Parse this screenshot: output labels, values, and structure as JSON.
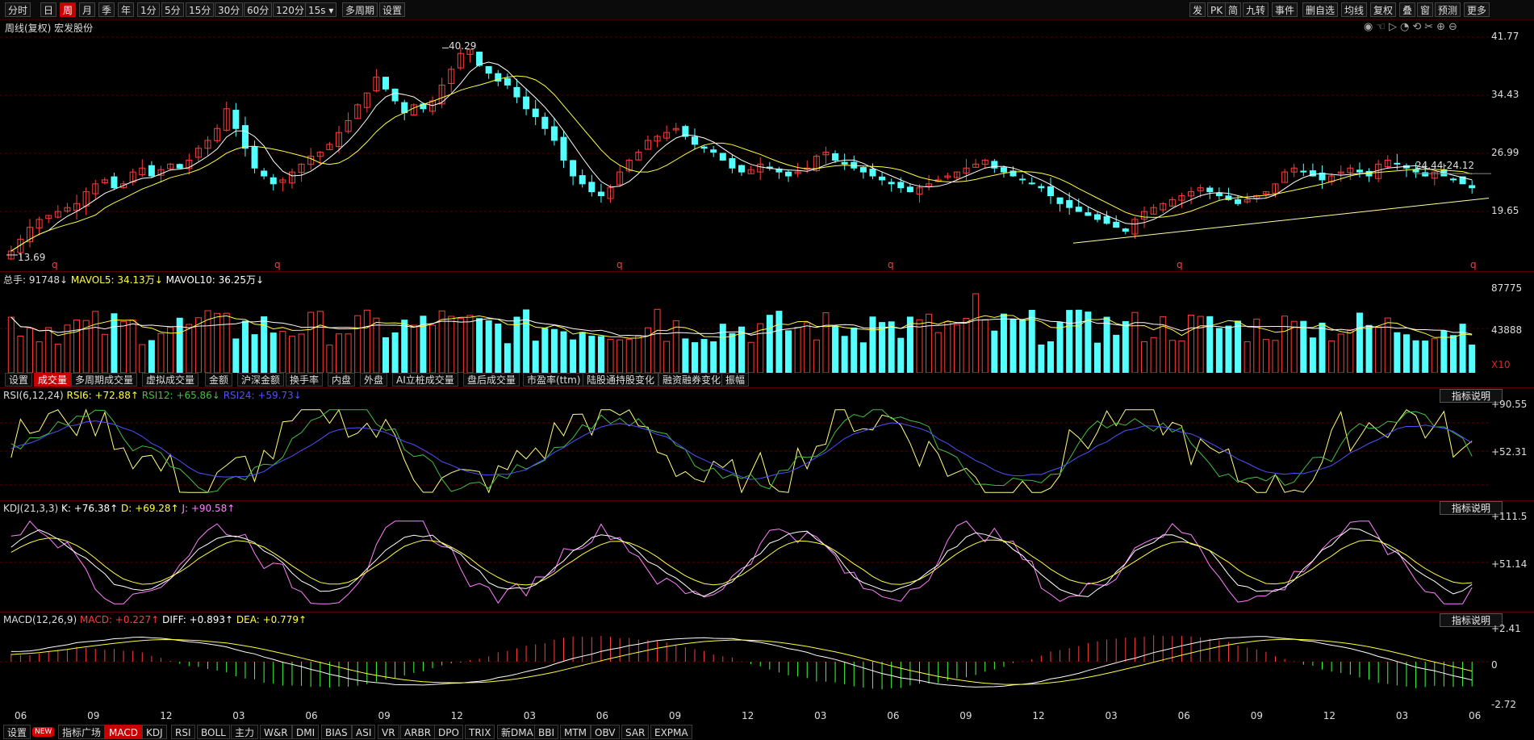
{
  "toolbar": {
    "left": [
      "分时",
      "日",
      "周",
      "月",
      "季",
      "年",
      "1分",
      "5分",
      "15分",
      "30分",
      "60分",
      "120分",
      "15s",
      "多周期",
      "设置"
    ],
    "active": "周",
    "right": [
      "发",
      "PK",
      "简",
      "九转",
      "事件",
      "删自选",
      "均线",
      "复权",
      "叠",
      "窗",
      "预测",
      "更多"
    ]
  },
  "main_panel": {
    "title": "周线(复权) 宏发股份",
    "y_ticks": [
      "41.77",
      "34.43",
      "26.99",
      "19.65"
    ],
    "high_label": "40.29",
    "low_label": "13.69",
    "range_label": "24.44-24.12"
  },
  "volume_panel": {
    "legend": {
      "total": "总手: 91748↓",
      "mavol5": "MAVOL5: 34.13万↓",
      "mavol10": "MAVOL10: 36.25万↓"
    },
    "y_ticks": [
      "87775",
      "43888",
      "X10"
    ],
    "tabs": [
      "设置",
      "成交量",
      "多周期成交量",
      "虚拟成交量",
      "金额",
      "沪深金额",
      "换手率",
      "内盘",
      "外盘",
      "AI立桩成交量",
      "盘后成交量",
      "市盈率(ttm)",
      "陆股通持股变化",
      "融资融券变化",
      "振幅"
    ],
    "active_tab": "成交量"
  },
  "rsi_panel": {
    "legend": {
      "name": "RSI(6,12,24)",
      "rsi6": "RSI6: +72.88↑",
      "rsi12": "RSI12: +65.86↓",
      "rsi24": "RSI24: +59.73↓"
    },
    "y_ticks": [
      "+90.55",
      "+52.31"
    ],
    "note_btn": "指标说明"
  },
  "kdj_panel": {
    "legend": {
      "name": "KDJ(21,3,3)",
      "k": "K: +76.38↑",
      "d": "D: +69.28↑",
      "j": "J: +90.58↑"
    },
    "y_ticks": [
      "+111.5",
      "+51.14"
    ],
    "note_btn": "指标说明"
  },
  "macd_panel": {
    "legend": {
      "name": "MACD(12,26,9)",
      "macd": "MACD: +0.227↑",
      "diff": "DIFF: +0.893↑",
      "dea": "DEA: +0.779↑"
    },
    "y_ticks": [
      "+2.41",
      "0",
      "-2.72"
    ],
    "note_btn": "指标说明"
  },
  "x_axis": [
    "06",
    "09",
    "12",
    "03",
    "06",
    "09",
    "12",
    "03",
    "06",
    "09",
    "12",
    "03",
    "06",
    "09",
    "12",
    "03",
    "06",
    "09",
    "12",
    "03",
    "06"
  ],
  "bottom_tabs": [
    "设置",
    "NEW",
    "指标广场",
    "MACD",
    "KDJ",
    "RSI",
    "BOLL",
    "主力",
    "W&R",
    "DMI",
    "BIAS",
    "ASI",
    "VR",
    "ARBR",
    "DPO",
    "TRIX",
    "新DMA",
    "BBI",
    "MTM",
    "OBV",
    "SAR",
    "EXPMA"
  ],
  "bottom_active": "MACD",
  "colors": {
    "up": "#ff3c3c",
    "down": "#54ffff",
    "ma_white": "#ffffff",
    "ma_yellow": "#ffff3c",
    "rsi24": "#5050ff",
    "kdj_j": "#ff80ff",
    "nine_magenta": "#ff40ff",
    "nine_green": "#40ff40"
  },
  "chart_data": {
    "type": "candlestick",
    "title": "周线(复权) 宏发股份",
    "y_range": [
      13.69,
      41.77
    ],
    "max_price": 40.29,
    "min_price": 13.69,
    "approx_weekly_closes": [
      14.5,
      16.0,
      17.5,
      18.5,
      19.0,
      19.5,
      20.0,
      20.5,
      22.0,
      23.0,
      23.5,
      22.5,
      23.0,
      24.5,
      25.0,
      24.0,
      24.8,
      25.5,
      25.0,
      26.0,
      27.5,
      28.5,
      30.0,
      32.5,
      30.0,
      27.5,
      25.0,
      24.0,
      23.0,
      23.5,
      24.5,
      25.5,
      26.5,
      27.0,
      28.0,
      29.5,
      31.0,
      33.0,
      34.5,
      36.5,
      35.0,
      33.5,
      32.0,
      33.0,
      32.5,
      33.5,
      35.5,
      37.5,
      39.5,
      40.0,
      38.0,
      37.0,
      36.0,
      35.5,
      34.0,
      32.5,
      31.5,
      30.0,
      28.5,
      26.0,
      24.0,
      23.0,
      22.0,
      21.5,
      22.5,
      24.5,
      26.0,
      27.0,
      28.5,
      29.0,
      29.5,
      30.0,
      29.0,
      28.0,
      27.5,
      27.0,
      26.0,
      25.0,
      24.5,
      24.8,
      25.5,
      25.0,
      24.5,
      24.0,
      24.5,
      25.0,
      26.5,
      27.0,
      26.0,
      25.5,
      25.0,
      24.5,
      24.0,
      23.5,
      23.0,
      22.5,
      22.0,
      22.5,
      23.0,
      23.5,
      24.0,
      24.5,
      25.0,
      25.5,
      26.0,
      25.0,
      24.5,
      24.0,
      23.5,
      23.0,
      22.5,
      21.5,
      20.5,
      20.0,
      19.5,
      19.0,
      18.5,
      18.0,
      17.5,
      17.0,
      18.5,
      19.5,
      20.0,
      20.5,
      21.0,
      21.5,
      22.0,
      22.5,
      22.0,
      21.5,
      21.0,
      20.5,
      21.0,
      21.5,
      22.0,
      23.0,
      24.5,
      25.0,
      24.5,
      24.0,
      23.5,
      24.0,
      24.5,
      25.0,
      24.5,
      24.0,
      25.5,
      26.0,
      25.5,
      25.0,
      24.5,
      24.0,
      24.5,
      24.0,
      23.5,
      23.0,
      22.5
    ],
    "ma_lines": [
      "MA white",
      "MA yellow"
    ]
  }
}
